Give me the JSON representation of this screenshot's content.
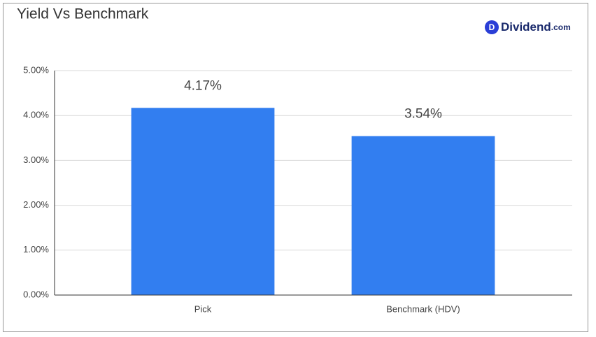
{
  "chart_data": {
    "type": "bar",
    "title": "Yield Vs Benchmark",
    "logo": {
      "icon": "D",
      "name": "Dividend",
      "suffix": ".com"
    },
    "categories": [
      "Pick",
      "Benchmark (HDV)"
    ],
    "values": [
      4.17,
      3.54
    ],
    "value_labels": [
      "4.17%",
      "3.54%"
    ],
    "color": "#327ef0",
    "ylim": [
      0,
      5
    ],
    "yticks": [
      {
        "value": 0,
        "label": "0.00%"
      },
      {
        "value": 1,
        "label": "1.00%"
      },
      {
        "value": 2,
        "label": "2.00%"
      },
      {
        "value": 3,
        "label": "3.00%"
      },
      {
        "value": 4,
        "label": "4.00%"
      },
      {
        "value": 5,
        "label": "5.00%"
      }
    ],
    "grid": true
  }
}
